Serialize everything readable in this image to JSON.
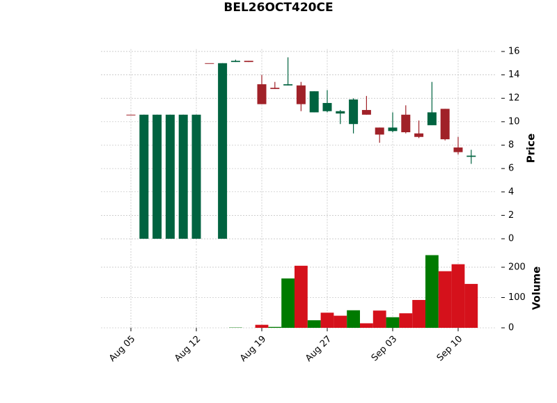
{
  "chart_data": {
    "type": "candlestick",
    "title": "BEL26OCT420CE",
    "categories": [
      "Aug 05",
      null,
      null,
      null,
      null,
      "Aug 12",
      null,
      null,
      null,
      null,
      "Aug 19",
      null,
      null,
      null,
      null,
      "Aug 27",
      null,
      null,
      null,
      null,
      "Sep 03",
      null,
      null,
      null,
      null,
      "Sep 10",
      null
    ],
    "open": [
      10.6,
      0,
      0,
      0,
      0,
      0,
      15.0,
      0,
      15.1,
      15.2,
      13.2,
      12.9,
      13.1,
      13.1,
      10.8,
      10.9,
      10.7,
      9.8,
      11.0,
      9.5,
      9.2,
      10.6,
      9.0,
      9.7,
      11.1,
      7.8,
      7.0
    ],
    "high": [
      10.6,
      10.6,
      10.6,
      10.6,
      10.6,
      10.6,
      15.0,
      15.0,
      15.3,
      15.2,
      14.0,
      13.4,
      15.5,
      13.4,
      12.6,
      12.7,
      11.0,
      12.0,
      12.2,
      9.5,
      10.8,
      11.4,
      10.1,
      13.4,
      11.1,
      8.7,
      7.6
    ],
    "low": [
      10.6,
      0,
      0,
      0,
      0,
      0,
      15.0,
      0,
      15.1,
      15.1,
      11.5,
      12.8,
      13.1,
      10.9,
      10.8,
      10.8,
      9.8,
      9.0,
      10.6,
      8.2,
      9.1,
      9.0,
      8.6,
      9.7,
      8.4,
      7.2,
      6.4
    ],
    "close": [
      10.6,
      10.6,
      10.6,
      10.6,
      10.6,
      10.6,
      15.0,
      15.0,
      15.2,
      15.1,
      11.5,
      12.8,
      13.2,
      11.5,
      12.6,
      11.6,
      10.9,
      11.9,
      10.6,
      8.9,
      9.5,
      9.1,
      8.7,
      10.8,
      8.5,
      7.4,
      7.1
    ],
    "volume": [
      0,
      0,
      0,
      0,
      0,
      0,
      0,
      0,
      1,
      0,
      10,
      3,
      163,
      205,
      25,
      50,
      40,
      58,
      15,
      57,
      35,
      48,
      92,
      240,
      187,
      210,
      145
    ],
    "volume_colors": [
      "#d5111b",
      "#007a00",
      "#007a00",
      "#007a00",
      "#007a00",
      "#007a00",
      "#007a00",
      "#007a00",
      "#007a00",
      "#d5111b",
      "#d5111b",
      "#007a00",
      "#007a00",
      "#d5111b",
      "#007a00",
      "#d5111b",
      "#d5111b",
      "#007a00",
      "#d5111b",
      "#d5111b",
      "#007a00",
      "#d5111b",
      "#d5111b",
      "#007a00",
      "#d5111b",
      "#d5111b",
      "#d5111b"
    ],
    "up_color": "#006340",
    "down_color": "#a02128",
    "ylabel": "Price",
    "ylim": [
      -0.7,
      16.2
    ],
    "yticks": [
      0,
      2,
      4,
      6,
      8,
      10,
      12,
      14,
      16
    ],
    "volume_label": "Volume",
    "volume_ylim": [
      0,
      262
    ],
    "volume_yticks": [
      0,
      100,
      200
    ],
    "grid": true
  }
}
